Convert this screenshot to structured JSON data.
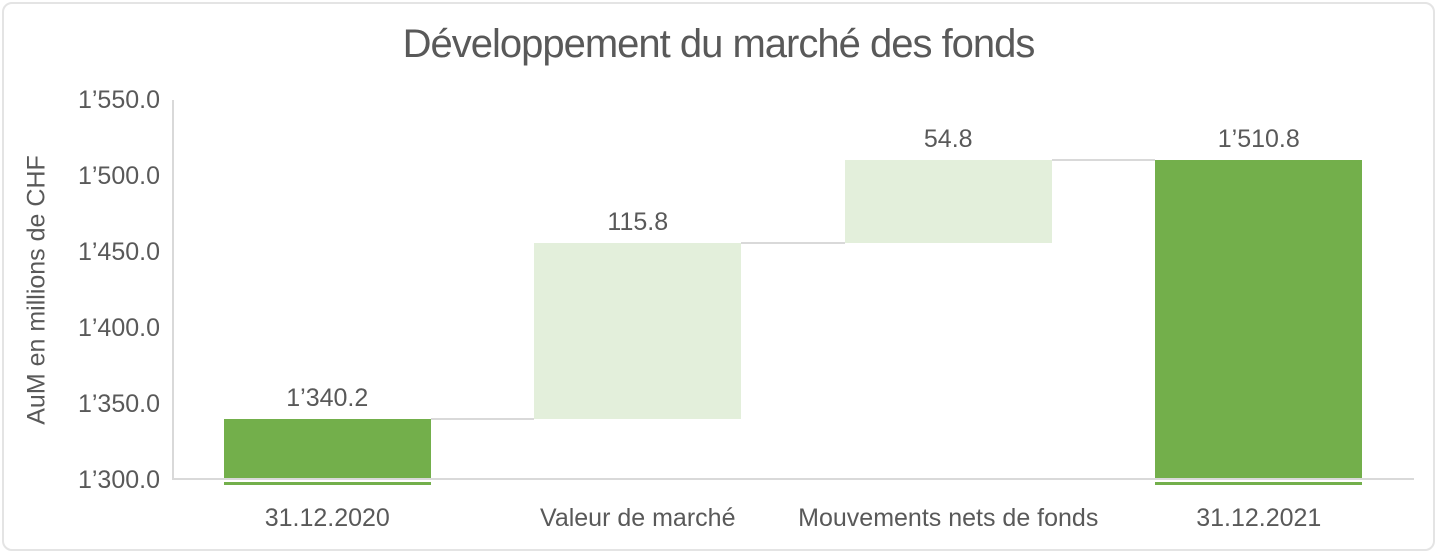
{
  "chart_data": {
    "type": "bar",
    "subtype": "waterfall",
    "title": "Développement du marché des fonds",
    "xlabel": "",
    "ylabel": "AuM en millions de CHF",
    "ylim": [
      1300,
      1550
    ],
    "grid": false,
    "legend": false,
    "categories": [
      "31.12.2020",
      "Valeur de marché",
      "Mouvements nets de fonds",
      "31.12.2021"
    ],
    "y_ticks": [
      {
        "value": 1550,
        "label": "1’550.0"
      },
      {
        "value": 1500,
        "label": "1’500.0"
      },
      {
        "value": 1450,
        "label": "1’450.0"
      },
      {
        "value": 1400,
        "label": "1’400.0"
      },
      {
        "value": 1350,
        "label": "1’350.0"
      },
      {
        "value": 1300,
        "label": "1’300.0"
      }
    ],
    "bars": [
      {
        "category": "31.12.2020",
        "kind": "total",
        "start": 1300,
        "end": 1340.2,
        "value": 1340.2,
        "label": "1’340.2"
      },
      {
        "category": "Valeur de marché",
        "kind": "increase",
        "start": 1340.2,
        "end": 1456.0,
        "value": 115.8,
        "label": "115.8"
      },
      {
        "category": "Mouvements nets de fonds",
        "kind": "increase",
        "start": 1456.0,
        "end": 1510.8,
        "value": 54.8,
        "label": "54.8"
      },
      {
        "category": "31.12.2021",
        "kind": "total",
        "start": 1300,
        "end": 1510.8,
        "value": 1510.8,
        "label": "1’510.8"
      }
    ]
  },
  "colors": {
    "total_bar": "#73AF4B",
    "delta_bar": "#E3EFDB",
    "axis_line": "#D9D9D9",
    "connector": "#D9D9D9",
    "text": "#595959",
    "border": "#E4E4E4",
    "background": "#FFFFFF"
  }
}
